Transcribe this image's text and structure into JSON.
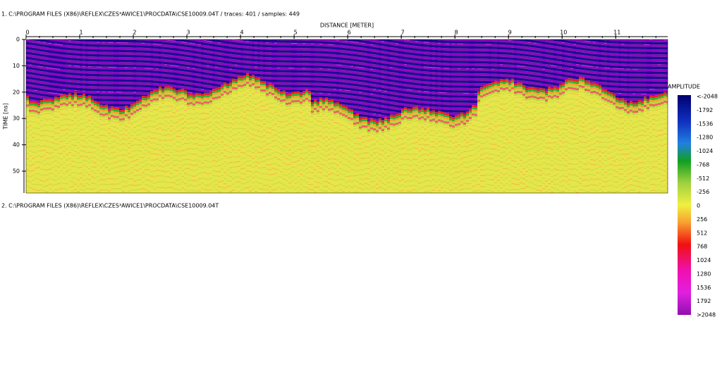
{
  "panel1": {
    "header": "1. C:\\PROGRAM FILES (X86)\\REFLEX\\CZES³AWICE1\\PROCDATA\\CSE10009.04T  / traces: 401 / samples: 449",
    "x_label": "DISTANCE [METER]",
    "xlim": [
      0,
      11.97
    ],
    "xticks": [
      0,
      1,
      2,
      3,
      4,
      5,
      6,
      7,
      8,
      9,
      10,
      11
    ],
    "y_label": "TIME [ns]",
    "ylim": [
      0,
      58.3
    ],
    "yticks": [
      0,
      10,
      20,
      30,
      40,
      50
    ]
  },
  "colorbar": {
    "title": "AMPLITUDE",
    "labels": [
      "<-2048",
      "-1792",
      "-1536",
      "-1280",
      "-1024",
      "-768",
      "-512",
      "-256",
      "0",
      "256",
      "512",
      "768",
      "1024",
      "1280",
      "1536",
      "1792",
      ">2048"
    ]
  },
  "panel2": {
    "header": "2. C:\\PROGRAM FILES (X86)\\REFLEX\\CZES³AWICE1\\PROCDATA\\CSE10009.04T"
  }
}
